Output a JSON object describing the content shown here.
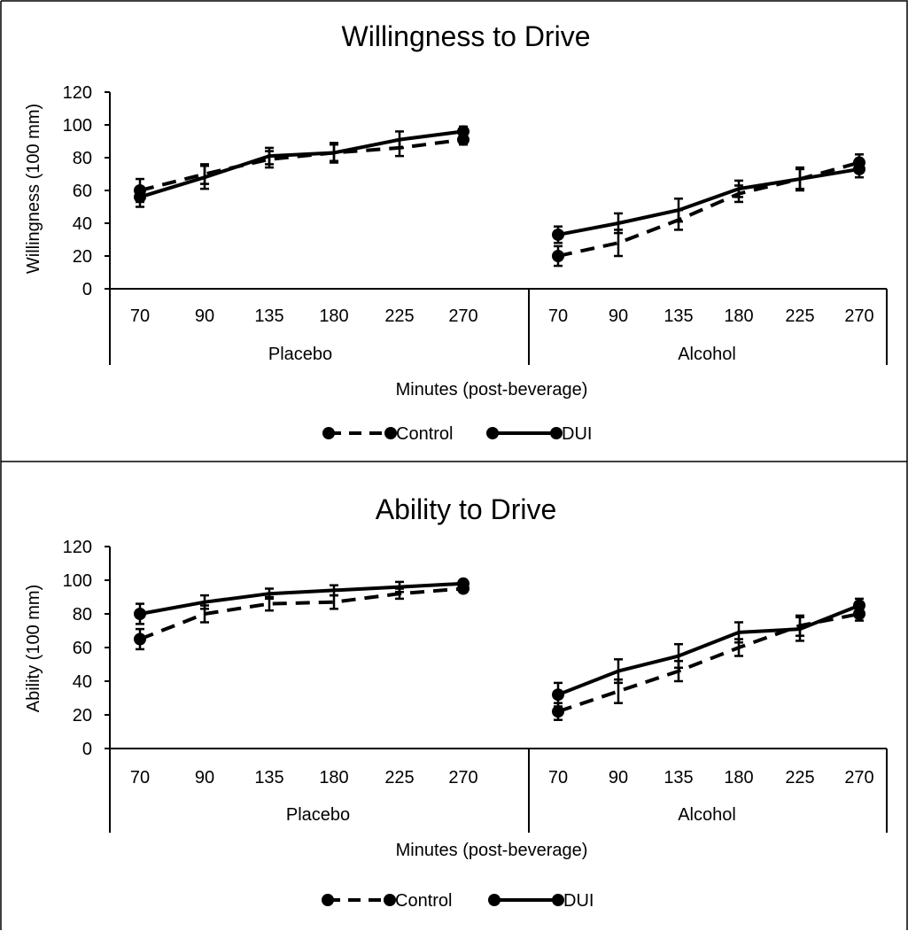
{
  "chart_data": [
    {
      "type": "line",
      "title": "Willingness to Drive",
      "ylabel": "Willingness (100 mm)",
      "xlabel": "Minutes (post-beverage)",
      "ylim": [
        0,
        120
      ],
      "yticks": [
        "0",
        "20",
        "40",
        "60",
        "80",
        "100",
        "120"
      ],
      "groups": [
        {
          "label": "Placebo",
          "categories": [
            "70",
            "90",
            "135",
            "180",
            "225",
            "270"
          ]
        },
        {
          "label": "Alcohol",
          "categories": [
            "70",
            "90",
            "135",
            "180",
            "225",
            "270"
          ]
        }
      ],
      "series": [
        {
          "name": "Control",
          "dash": "dashed",
          "values": [
            [
              60,
              70,
              79,
              83,
              86,
              91
            ],
            [
              20,
              28,
              42,
              58,
              67,
              77
            ]
          ],
          "errors": [
            [
              7,
              6,
              5,
              5,
              5,
              3
            ],
            [
              6,
              8,
              6,
              5,
              6,
              5
            ]
          ]
        },
        {
          "name": "DUI",
          "dash": "solid",
          "values": [
            [
              56,
              68,
              81,
              83,
              91,
              96
            ],
            [
              33,
              40,
              48,
              61,
              67,
              73
            ]
          ],
          "errors": [
            [
              6,
              7,
              5,
              6,
              5,
              3
            ],
            [
              5,
              6,
              7,
              5,
              7,
              5
            ]
          ]
        }
      ],
      "legend_position": "bottom"
    },
    {
      "type": "line",
      "title": "Ability to Drive",
      "ylabel": "Ability (100 mm)",
      "xlabel": "Minutes (post-beverage)",
      "ylim": [
        0,
        120
      ],
      "yticks": [
        "0",
        "20",
        "40",
        "60",
        "80",
        "100",
        "120"
      ],
      "groups": [
        {
          "label": "Placebo",
          "categories": [
            "70",
            "90",
            "135",
            "180",
            "225",
            "270"
          ]
        },
        {
          "label": "Alcohol",
          "categories": [
            "70",
            "90",
            "135",
            "180",
            "225",
            "270"
          ]
        }
      ],
      "series": [
        {
          "name": "Control",
          "dash": "dashed",
          "values": [
            [
              65,
              80,
              86,
              87,
              92,
              95
            ],
            [
              22,
              34,
              46,
              60,
              73,
              80
            ]
          ],
          "errors": [
            [
              6,
              5,
              4,
              4,
              3,
              2
            ],
            [
              5,
              7,
              6,
              5,
              6,
              4
            ]
          ]
        },
        {
          "name": "DUI",
          "dash": "solid",
          "values": [
            [
              80,
              87,
              92,
              94,
              96,
              98
            ],
            [
              32,
              46,
              55,
              69,
              71,
              85
            ]
          ],
          "errors": [
            [
              6,
              4,
              3,
              3,
              3,
              2
            ],
            [
              7,
              7,
              7,
              6,
              7,
              4
            ]
          ]
        }
      ],
      "legend_position": "bottom"
    }
  ]
}
